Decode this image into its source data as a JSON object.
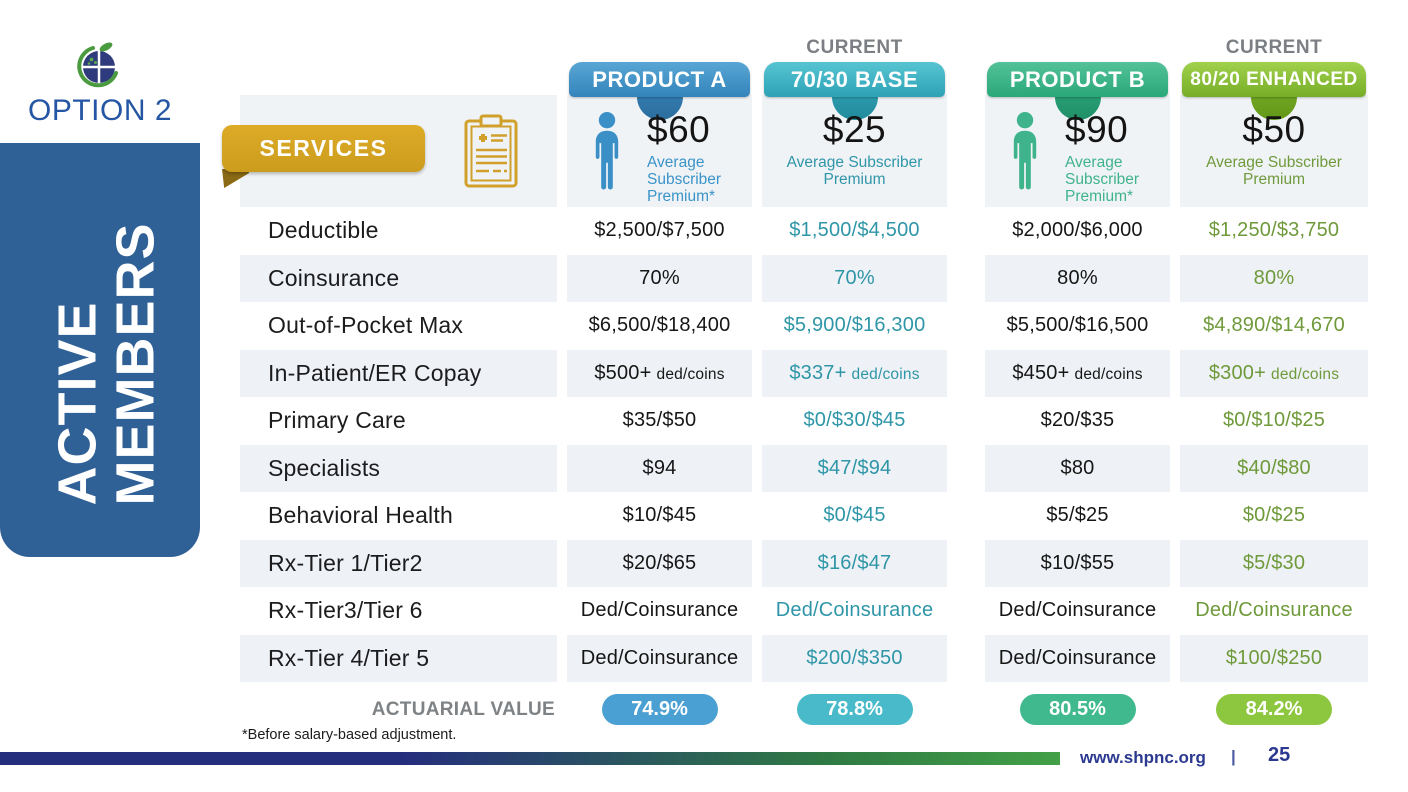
{
  "slide": {
    "option_label": "OPTION 2",
    "sidebar": {
      "line1": "ACTIVE",
      "line2": "MEMBERS"
    },
    "services_label": "SERVICES",
    "actuarial_label": "ACTUARIAL VALUE",
    "footnote": "*Before salary-based adjustment.",
    "footer": {
      "url": "www.shpnc.org",
      "separator": "|",
      "page": "25"
    },
    "colors": {
      "sidebar_blue": "#2f6096",
      "banner_gold": "#d4a324",
      "option_navy": "#2456a4",
      "footer_navy": "#2b3990",
      "bar_gradient_start": "#252e7d",
      "bar_gradient_end": "#43a047"
    }
  },
  "columns": [
    {
      "id": "product-a",
      "tab": "PRODUCT A",
      "current_label": "",
      "price": "$60",
      "premium_lines": [
        "Average",
        "Subscriber",
        "Premium*"
      ],
      "person_icon": true,
      "actuarial": "74.9%",
      "tab_grad": [
        "#58a6d4",
        "#3484bc"
      ],
      "bump_grad": [
        "#3b88bf",
        "#2a6d9c"
      ],
      "pill_color": "#4a9fd3",
      "value_color": "#161616",
      "premium_color": "#3a93c9",
      "person_color": "#3a8fc7"
    },
    {
      "id": "base-70-30",
      "tab": "70/30 BASE",
      "current_label": "CURRENT",
      "price": "$25",
      "premium_lines": [
        "Average Subscriber",
        "Premium"
      ],
      "person_icon": false,
      "actuarial": "78.8%",
      "tab_grad": [
        "#57c4d2",
        "#2da3b6"
      ],
      "bump_grad": [
        "#35a9ba",
        "#218b9d"
      ],
      "pill_color": "#49bac9",
      "value_color": "#2f96a8",
      "premium_color": "#2f96a8",
      "person_color": ""
    },
    {
      "id": "product-b",
      "tab": "PRODUCT B",
      "current_label": "",
      "price": "$90",
      "premium_lines": [
        "Average",
        "Subscriber",
        "Premium*"
      ],
      "person_icon": true,
      "actuarial": "80.5%",
      "tab_grad": [
        "#53c199",
        "#2aa87a"
      ],
      "bump_grad": [
        "#31ab80",
        "#1f8f67"
      ],
      "pill_color": "#40b98e",
      "value_color": "#161616",
      "premium_color": "#3fb38b",
      "person_color": "#3fb38b"
    },
    {
      "id": "enhanced-80-20",
      "tab": "80/20 ENHANCED",
      "current_label": "CURRENT",
      "price": "$50",
      "premium_lines": [
        "Average Subscriber",
        "Premium"
      ],
      "person_icon": false,
      "actuarial": "84.2%",
      "tab_grad": [
        "#a1d14d",
        "#76ad27"
      ],
      "bump_grad": [
        "#7cb32e",
        "#639717"
      ],
      "pill_color": "#8dc63f",
      "value_color": "#6f9a3b",
      "premium_color": "#6f9a3b",
      "person_color": ""
    }
  ],
  "rows": [
    {
      "label": "Deductible",
      "values": [
        "$2,500/$7,500",
        "$1,500/$4,500",
        "$2,000/$6,000",
        "$1,250/$3,750"
      ]
    },
    {
      "label": "Coinsurance",
      "values": [
        "70%",
        "70%",
        "80%",
        "80%"
      ]
    },
    {
      "label": "Out-of-Pocket Max",
      "values": [
        "$6,500/$18,400",
        "$5,900/$16,300",
        "$5,500/$16,500",
        "$4,890/$14,670"
      ]
    },
    {
      "label": "In-Patient/ER Copay",
      "values": [
        {
          "t": "$500+",
          "s": "ded/coins"
        },
        {
          "t": "$337+",
          "s": "ded/coins"
        },
        {
          "t": "$450+",
          "s": "ded/coins"
        },
        {
          "t": "$300+",
          "s": "ded/coins"
        }
      ]
    },
    {
      "label": "Primary Care",
      "values": [
        "$35/$50",
        "$0/$30/$45",
        "$20/$35",
        "$0/$10/$25"
      ]
    },
    {
      "label": "Specialists",
      "values": [
        "$94",
        "$47/$94",
        "$80",
        "$40/$80"
      ]
    },
    {
      "label": "Behavioral Health",
      "values": [
        "$10/$45",
        "$0/$45",
        "$5/$25",
        "$0/$25"
      ]
    },
    {
      "label": "Rx-Tier 1/Tier2",
      "values": [
        "$20/$65",
        "$16/$47",
        "$10/$55",
        "$5/$30"
      ]
    },
    {
      "label": "Rx-Tier3/Tier 6",
      "values": [
        "Ded/Coinsurance",
        "Ded/Coinsurance",
        "Ded/Coinsurance",
        "Ded/Coinsurance"
      ]
    },
    {
      "label": "Rx-Tier 4/Tier 5",
      "values": [
        "Ded/Coinsurance",
        "$200/$350",
        "Ded/Coinsurance",
        "$100/$250"
      ]
    }
  ]
}
